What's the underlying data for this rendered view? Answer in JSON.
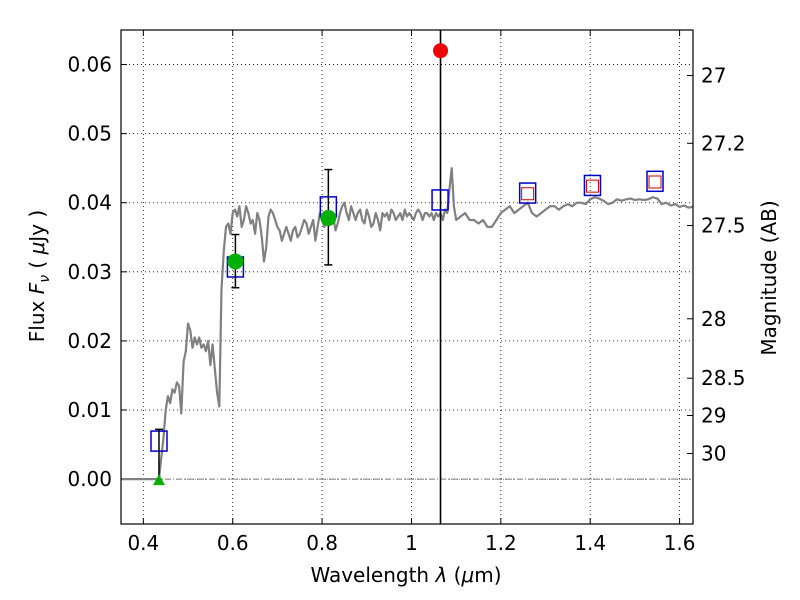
{
  "chart_data": {
    "type": "scatter",
    "title": "",
    "xlabel": "Wavelength  λ (μm)",
    "ylabel": "Flux  F_ν  ( μJy )",
    "ylabel_parts": {
      "prefix": "Flux  ",
      "var": "F",
      "sub": "ν",
      "open": "  ( ",
      "mu": "μ",
      "unit": "Jy )"
    },
    "xlabel_parts": {
      "prefix": "Wavelength  ",
      "var": "λ",
      "open": " (",
      "mu": "μ",
      "unit": "m)"
    },
    "y2label": "Magnitude (AB)",
    "xlim": [
      0.35,
      1.63
    ],
    "ylim": [
      -0.0065,
      0.065
    ],
    "grid": true,
    "x_ticks": [
      {
        "v": 0.4,
        "label": "0.4"
      },
      {
        "v": 0.6,
        "label": "0.6"
      },
      {
        "v": 0.8,
        "label": "0.8"
      },
      {
        "v": 1.0,
        "label": "1"
      },
      {
        "v": 1.2,
        "label": "1.2"
      },
      {
        "v": 1.4,
        "label": "1.4"
      },
      {
        "v": 1.6,
        "label": "1.6"
      }
    ],
    "y_ticks": [
      {
        "v": 0.0,
        "label": "0.00"
      },
      {
        "v": 0.01,
        "label": "0.01"
      },
      {
        "v": 0.02,
        "label": "0.02"
      },
      {
        "v": 0.03,
        "label": "0.03"
      },
      {
        "v": 0.04,
        "label": "0.04"
      },
      {
        "v": 0.05,
        "label": "0.05"
      },
      {
        "v": 0.06,
        "label": "0.06"
      }
    ],
    "y2_ticks": [
      {
        "flux": 0.0584,
        "label": "27"
      },
      {
        "flux": 0.0486,
        "label": "27.2"
      },
      {
        "flux": 0.0367,
        "label": "27.5"
      },
      {
        "flux": 0.0232,
        "label": "28"
      },
      {
        "flux": 0.0146,
        "label": "28.5"
      },
      {
        "flux": 0.0092,
        "label": "29"
      },
      {
        "flux": 0.0037,
        "label": "30"
      }
    ],
    "colors": {
      "model": "#808080",
      "box": "#0000cc",
      "inner_box": "#cc0000",
      "green": "#00b000",
      "red": "#ee0000",
      "error": "#000000",
      "vline": "#000000"
    },
    "vline_x": 1.065,
    "hline_y": 0.0,
    "model_spectrum": [
      [
        0.35,
        0.0
      ],
      [
        0.43,
        0.0
      ],
      [
        0.435,
        0.0
      ],
      [
        0.44,
        0.003
      ],
      [
        0.445,
        0.006
      ],
      [
        0.45,
        0.01
      ],
      [
        0.455,
        0.012
      ],
      [
        0.46,
        0.011
      ],
      [
        0.465,
        0.013
      ],
      [
        0.47,
        0.0125
      ],
      [
        0.475,
        0.014
      ],
      [
        0.48,
        0.0135
      ],
      [
        0.485,
        0.0095
      ],
      [
        0.49,
        0.017
      ],
      [
        0.495,
        0.0185
      ],
      [
        0.5,
        0.0225
      ],
      [
        0.505,
        0.0215
      ],
      [
        0.51,
        0.019
      ],
      [
        0.515,
        0.0205
      ],
      [
        0.52,
        0.0195
      ],
      [
        0.525,
        0.0205
      ],
      [
        0.53,
        0.019
      ],
      [
        0.535,
        0.0195
      ],
      [
        0.54,
        0.0185
      ],
      [
        0.545,
        0.02
      ],
      [
        0.55,
        0.0165
      ],
      [
        0.555,
        0.0195
      ],
      [
        0.56,
        0.016
      ],
      [
        0.565,
        0.0125
      ],
      [
        0.57,
        0.0105
      ],
      [
        0.575,
        0.0275
      ],
      [
        0.58,
        0.033
      ],
      [
        0.585,
        0.0365
      ],
      [
        0.59,
        0.037
      ],
      [
        0.595,
        0.0355
      ],
      [
        0.6,
        0.0385
      ],
      [
        0.605,
        0.039
      ],
      [
        0.61,
        0.038
      ],
      [
        0.615,
        0.0395
      ],
      [
        0.62,
        0.0365
      ],
      [
        0.625,
        0.0375
      ],
      [
        0.63,
        0.0395
      ],
      [
        0.635,
        0.0385
      ],
      [
        0.64,
        0.037
      ],
      [
        0.645,
        0.0375
      ],
      [
        0.65,
        0.0355
      ],
      [
        0.655,
        0.0385
      ],
      [
        0.66,
        0.0375
      ],
      [
        0.665,
        0.035
      ],
      [
        0.67,
        0.0315
      ],
      [
        0.675,
        0.0335
      ],
      [
        0.68,
        0.038
      ],
      [
        0.685,
        0.039
      ],
      [
        0.69,
        0.0385
      ],
      [
        0.695,
        0.0375
      ],
      [
        0.7,
        0.0365
      ],
      [
        0.705,
        0.036
      ],
      [
        0.71,
        0.0345
      ],
      [
        0.715,
        0.0355
      ],
      [
        0.72,
        0.0365
      ],
      [
        0.725,
        0.0355
      ],
      [
        0.73,
        0.0345
      ],
      [
        0.735,
        0.036
      ],
      [
        0.74,
        0.0365
      ],
      [
        0.745,
        0.035
      ],
      [
        0.75,
        0.0355
      ],
      [
        0.755,
        0.0365
      ],
      [
        0.76,
        0.0375
      ],
      [
        0.765,
        0.037
      ],
      [
        0.77,
        0.0355
      ],
      [
        0.775,
        0.0365
      ],
      [
        0.78,
        0.0375
      ],
      [
        0.785,
        0.0345
      ],
      [
        0.79,
        0.0365
      ],
      [
        0.795,
        0.0385
      ],
      [
        0.8,
        0.0375
      ],
      [
        0.805,
        0.0365
      ],
      [
        0.81,
        0.037
      ],
      [
        0.815,
        0.0385
      ],
      [
        0.82,
        0.0375
      ],
      [
        0.825,
        0.038
      ],
      [
        0.83,
        0.036
      ],
      [
        0.835,
        0.037
      ],
      [
        0.84,
        0.0385
      ],
      [
        0.845,
        0.0395
      ],
      [
        0.85,
        0.04
      ],
      [
        0.855,
        0.0385
      ],
      [
        0.86,
        0.0375
      ],
      [
        0.865,
        0.0395
      ],
      [
        0.87,
        0.0385
      ],
      [
        0.875,
        0.0375
      ],
      [
        0.88,
        0.0385
      ],
      [
        0.885,
        0.039
      ],
      [
        0.89,
        0.0375
      ],
      [
        0.895,
        0.037
      ],
      [
        0.9,
        0.039
      ],
      [
        0.905,
        0.038
      ],
      [
        0.91,
        0.0365
      ],
      [
        0.915,
        0.037
      ],
      [
        0.92,
        0.0385
      ],
      [
        0.925,
        0.0375
      ],
      [
        0.93,
        0.036
      ],
      [
        0.935,
        0.0385
      ],
      [
        0.94,
        0.038
      ],
      [
        0.945,
        0.0385
      ],
      [
        0.95,
        0.0375
      ],
      [
        0.955,
        0.039
      ],
      [
        0.96,
        0.0385
      ],
      [
        0.965,
        0.0375
      ],
      [
        0.97,
        0.038
      ],
      [
        0.975,
        0.0385
      ],
      [
        0.98,
        0.0375
      ],
      [
        0.985,
        0.039
      ],
      [
        0.99,
        0.038
      ],
      [
        0.995,
        0.0385
      ],
      [
        1.0,
        0.038
      ],
      [
        1.005,
        0.0375
      ],
      [
        1.01,
        0.0385
      ],
      [
        1.015,
        0.039
      ],
      [
        1.02,
        0.0385
      ],
      [
        1.025,
        0.0375
      ],
      [
        1.03,
        0.0385
      ],
      [
        1.035,
        0.0385
      ],
      [
        1.04,
        0.038
      ],
      [
        1.045,
        0.0385
      ],
      [
        1.05,
        0.0375
      ],
      [
        1.055,
        0.0385
      ],
      [
        1.06,
        0.038
      ],
      [
        1.065,
        0.0385
      ],
      [
        1.07,
        0.0375
      ],
      [
        1.075,
        0.039
      ],
      [
        1.08,
        0.0385
      ],
      [
        1.085,
        0.042
      ],
      [
        1.09,
        0.045
      ],
      [
        1.095,
        0.0395
      ],
      [
        1.1,
        0.0375
      ],
      [
        1.11,
        0.038
      ],
      [
        1.12,
        0.0385
      ],
      [
        1.13,
        0.0375
      ],
      [
        1.14,
        0.0375
      ],
      [
        1.15,
        0.037
      ],
      [
        1.16,
        0.0375
      ],
      [
        1.17,
        0.0365
      ],
      [
        1.18,
        0.0365
      ],
      [
        1.19,
        0.0375
      ],
      [
        1.2,
        0.0385
      ],
      [
        1.21,
        0.039
      ],
      [
        1.22,
        0.0395
      ],
      [
        1.23,
        0.0385
      ],
      [
        1.24,
        0.039
      ],
      [
        1.25,
        0.0395
      ],
      [
        1.26,
        0.04
      ],
      [
        1.27,
        0.0385
      ],
      [
        1.28,
        0.038
      ],
      [
        1.29,
        0.0385
      ],
      [
        1.3,
        0.039
      ],
      [
        1.31,
        0.0395
      ],
      [
        1.32,
        0.0395
      ],
      [
        1.33,
        0.039
      ],
      [
        1.34,
        0.0395
      ],
      [
        1.35,
        0.0398
      ],
      [
        1.36,
        0.0395
      ],
      [
        1.37,
        0.04
      ],
      [
        1.38,
        0.04
      ],
      [
        1.39,
        0.0398
      ],
      [
        1.4,
        0.0405
      ],
      [
        1.41,
        0.0408
      ],
      [
        1.42,
        0.0406
      ],
      [
        1.43,
        0.0403
      ],
      [
        1.44,
        0.0398
      ],
      [
        1.45,
        0.04
      ],
      [
        1.46,
        0.0405
      ],
      [
        1.47,
        0.0403
      ],
      [
        1.48,
        0.0405
      ],
      [
        1.49,
        0.0406
      ],
      [
        1.5,
        0.0404
      ],
      [
        1.51,
        0.0405
      ],
      [
        1.52,
        0.0404
      ],
      [
        1.53,
        0.0405
      ],
      [
        1.54,
        0.0408
      ],
      [
        1.55,
        0.0406
      ],
      [
        1.56,
        0.0398
      ],
      [
        1.57,
        0.04
      ],
      [
        1.58,
        0.0396
      ],
      [
        1.59,
        0.0398
      ],
      [
        1.6,
        0.0394
      ],
      [
        1.61,
        0.0396
      ],
      [
        1.62,
        0.0393
      ],
      [
        1.63,
        0.0394
      ]
    ],
    "model_photometry": [
      {
        "x": 0.435,
        "y": 0.0055
      },
      {
        "x": 0.606,
        "y": 0.0307
      },
      {
        "x": 0.814,
        "y": 0.0394
      },
      {
        "x": 1.064,
        "y": 0.0404
      },
      {
        "x": 1.26,
        "y": 0.0414
      },
      {
        "x": 1.405,
        "y": 0.0425
      },
      {
        "x": 1.545,
        "y": 0.0431
      }
    ],
    "observed_boxes": [
      {
        "x": 1.26,
        "y": 0.0413
      },
      {
        "x": 1.405,
        "y": 0.0424
      },
      {
        "x": 1.545,
        "y": 0.043
      }
    ],
    "detections": [
      {
        "x": 0.606,
        "y": 0.0315,
        "err_lo": 0.0277,
        "err_hi": 0.0354
      },
      {
        "x": 0.814,
        "y": 0.0378,
        "err_lo": 0.031,
        "err_hi": 0.0448
      }
    ],
    "upper_limit": {
      "x": 0.435,
      "y": -0.0003,
      "err_hi": 0.0072
    },
    "red_point": {
      "x": 1.065,
      "y": 0.062
    }
  }
}
